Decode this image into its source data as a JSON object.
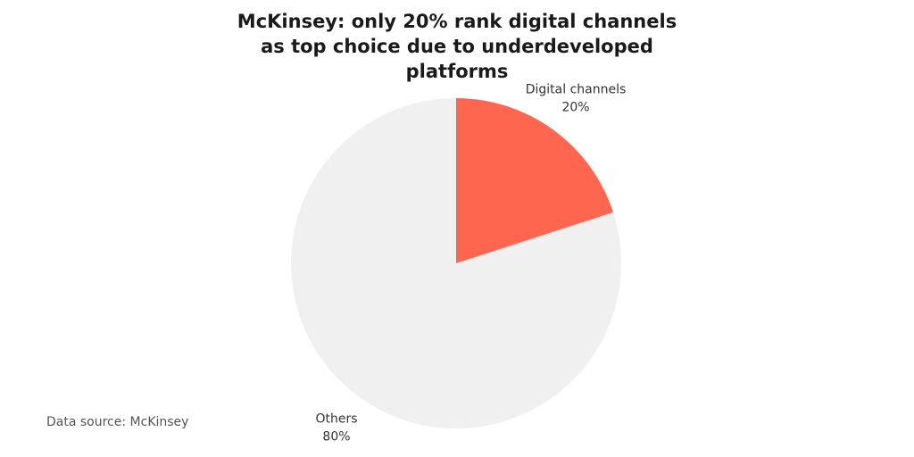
{
  "chart_data": {
    "type": "pie",
    "title": "McKinsey: only 20% rank digital channels as top choice due to underdeveloped platforms",
    "categories": [
      "Digital channels",
      "Others"
    ],
    "values": [
      20,
      80
    ],
    "value_labels": [
      "20%",
      "80%"
    ],
    "colors": [
      "#ff6650",
      "#f0f0f0"
    ],
    "source": "Data source: McKinsey"
  }
}
